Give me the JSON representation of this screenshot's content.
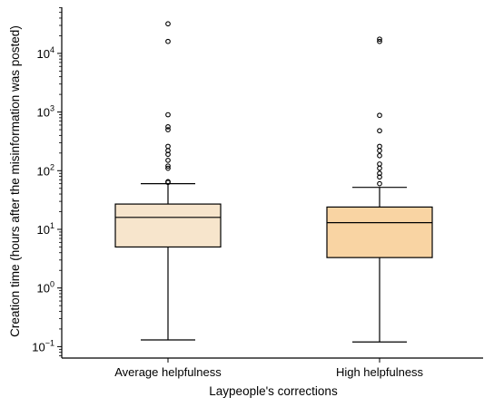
{
  "chart_data": {
    "type": "box",
    "xlabel": "Laypeople's corrections",
    "ylabel": "Creation time (hours after the misinformation was posted)",
    "yscale": "log",
    "ylim": [
      0.065,
      60000
    ],
    "yticks": [
      {
        "base": "10",
        "exp": "−1",
        "value": 0.1
      },
      {
        "base": "10",
        "exp": "0",
        "value": 1
      },
      {
        "base": "10",
        "exp": "1",
        "value": 10
      },
      {
        "base": "10",
        "exp": "2",
        "value": 100
      },
      {
        "base": "10",
        "exp": "3",
        "value": 1000
      },
      {
        "base": "10",
        "exp": "4",
        "value": 10000
      }
    ],
    "grid": false,
    "categories": [
      "Average helpfulness",
      "High helpfulness"
    ],
    "boxes": [
      {
        "category": "Average helpfulness",
        "color": "#f7e5cc",
        "whisker_low": 0.13,
        "q1": 5.0,
        "median": 16.0,
        "q3": 27.0,
        "whisker_high": 60,
        "outliers": [
          63,
          65,
          110,
          120,
          150,
          190,
          220,
          260,
          500,
          560,
          900,
          16000,
          32000
        ]
      },
      {
        "category": "High helpfulness",
        "color": "#f9d4a3",
        "whisker_low": 0.12,
        "q1": 3.3,
        "median": 13.0,
        "q3": 24.0,
        "whisker_high": 52,
        "outliers": [
          60,
          78,
          90,
          110,
          130,
          180,
          220,
          260,
          480,
          880,
          16000,
          17500
        ]
      }
    ]
  }
}
